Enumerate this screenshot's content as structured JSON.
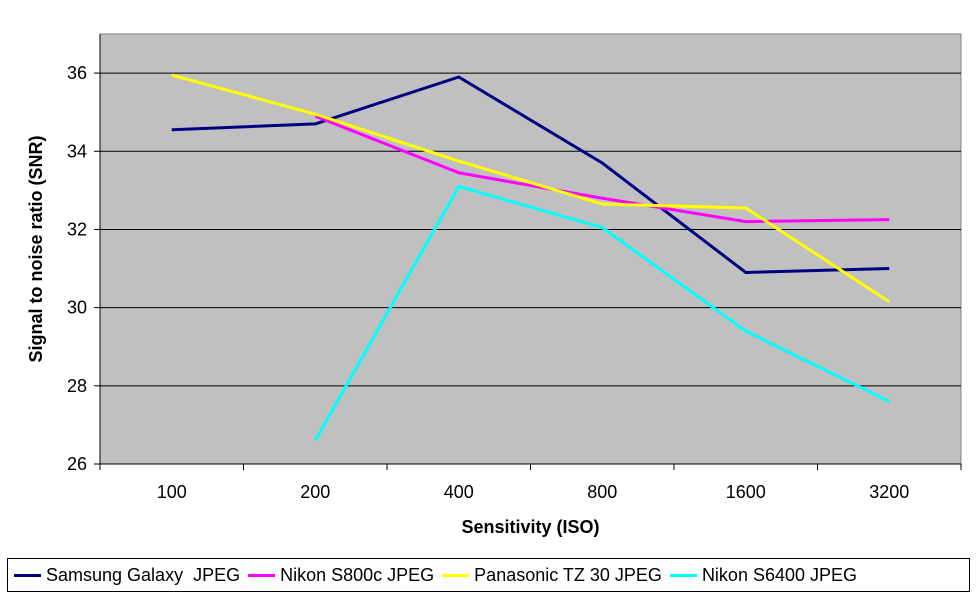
{
  "chart_data": {
    "type": "line",
    "title": "",
    "xlabel": "Sensitivity (ISO)",
    "ylabel": "Signal to noise ratio (SNR)",
    "categories": [
      "100",
      "200",
      "400",
      "800",
      "1600",
      "3200"
    ],
    "ylim": [
      26,
      37
    ],
    "yticks": [
      "26",
      "28",
      "30",
      "32",
      "34",
      "36"
    ],
    "grid": true,
    "plot_background": "#C0C0C0",
    "legend_position": "bottom",
    "series": [
      {
        "name": "Samsung Galaxy  JPEG",
        "color": "#000080",
        "values": [
          34.55,
          34.7,
          35.9,
          33.7,
          30.9,
          31.0
        ]
      },
      {
        "name": "Nikon S800c JPEG",
        "color": "#FF00FF",
        "values": [
          null,
          34.9,
          33.45,
          32.8,
          32.2,
          32.25
        ]
      },
      {
        "name": "Panasonic TZ 30 JPEG",
        "color": "#FFFF00",
        "values": [
          35.95,
          34.95,
          33.75,
          32.65,
          32.55,
          30.15
        ]
      },
      {
        "name": "Nikon S6400 JPEG",
        "color": "#00FFFF",
        "values": [
          null,
          26.6,
          33.1,
          32.05,
          29.4,
          27.6
        ]
      }
    ]
  }
}
